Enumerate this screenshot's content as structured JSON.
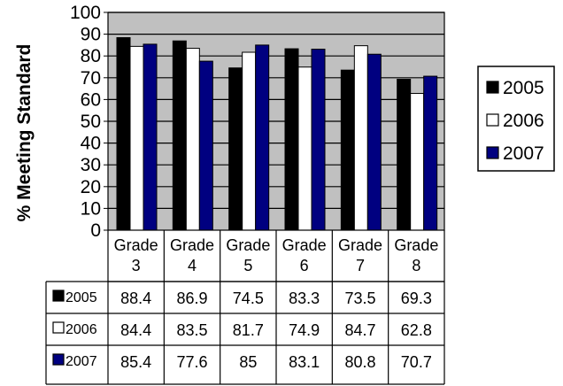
{
  "chart_data": {
    "type": "bar",
    "title": "",
    "xlabel": "",
    "ylabel": "% Meeting Standard",
    "ylim": [
      0,
      100
    ],
    "yticks": [
      0,
      10,
      20,
      30,
      40,
      50,
      60,
      70,
      80,
      90,
      100
    ],
    "grid": true,
    "legend_position": "right",
    "categories": [
      [
        "Grade",
        "3"
      ],
      [
        "Grade",
        "4"
      ],
      [
        "Grade",
        "5"
      ],
      [
        "Grade",
        "6"
      ],
      [
        "Grade",
        "7"
      ],
      [
        "Grade",
        "8"
      ]
    ],
    "series": [
      {
        "name": "2005",
        "color": "#000000",
        "values": [
          88.4,
          86.9,
          74.5,
          83.3,
          73.5,
          69.3
        ]
      },
      {
        "name": "2006",
        "color": "#ffffff",
        "values": [
          84.4,
          83.5,
          81.7,
          74.9,
          84.7,
          62.8
        ]
      },
      {
        "name": "2007",
        "color": "#000080",
        "values": [
          85.4,
          77.6,
          85,
          83.1,
          80.8,
          70.7
        ]
      }
    ],
    "data_table_values": [
      [
        "88.4",
        "86.9",
        "74.5",
        "83.3",
        "73.5",
        "69.3"
      ],
      [
        "84.4",
        "83.5",
        "81.7",
        "74.9",
        "84.7",
        "62.8"
      ],
      [
        "85.4",
        "77.6",
        "85",
        "83.1",
        "80.8",
        "70.7"
      ]
    ],
    "plot_background": "#c0c0c0"
  }
}
